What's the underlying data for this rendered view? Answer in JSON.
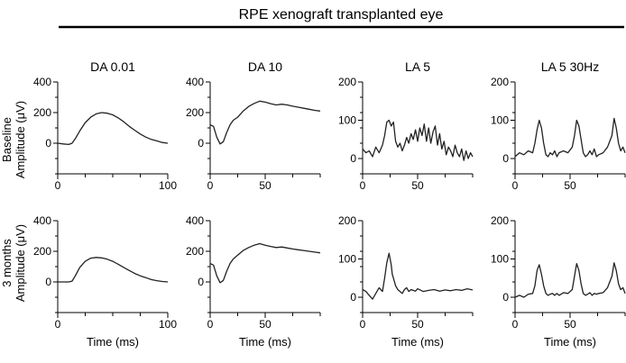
{
  "chart_data": {
    "type": "line",
    "title": "RPE xenograft transplanted eye",
    "row_labels": [
      {
        "line1": "Baseline",
        "line2": "Amplitude (μV)"
      },
      {
        "line1": "3 months",
        "line2": "Amplitude (μV)"
      }
    ],
    "xlabel": "Time (ms)",
    "panels": [
      {
        "title": "DA 0.01",
        "xlim": [
          0,
          100
        ],
        "ylim": [
          -200,
          400
        ],
        "xticks": [
          0,
          100
        ],
        "yticks": [
          400,
          200,
          0
        ],
        "rows": [
          {
            "x": [
              0,
              5,
              10,
              13,
              16,
              20,
              25,
              30,
              35,
              40,
              45,
              50,
              55,
              60,
              65,
              70,
              75,
              80,
              85,
              90,
              95,
              100
            ],
            "y": [
              0,
              -5,
              -8,
              0,
              30,
              80,
              135,
              170,
              192,
              200,
              196,
              185,
              165,
              140,
              110,
              85,
              60,
              40,
              25,
              15,
              5,
              0
            ]
          },
          {
            "x": [
              0,
              5,
              10,
              13,
              16,
              20,
              25,
              30,
              35,
              40,
              45,
              50,
              55,
              60,
              65,
              70,
              75,
              80,
              85,
              90,
              95,
              100
            ],
            "y": [
              0,
              0,
              0,
              5,
              40,
              95,
              135,
              155,
              160,
              157,
              148,
              135,
              115,
              95,
              75,
              55,
              40,
              28,
              15,
              8,
              3,
              0
            ]
          }
        ]
      },
      {
        "title": "DA 10",
        "xlim": [
          0,
          100
        ],
        "ylim": [
          -200,
          400
        ],
        "xticks": [
          0,
          50
        ],
        "yticks": [
          400,
          200,
          0
        ],
        "rows": [
          {
            "x": [
              0,
              3,
              6,
              9,
              12,
              15,
              18,
              21,
              25,
              30,
              35,
              40,
              45,
              50,
              55,
              60,
              65,
              70,
              75,
              80,
              85,
              90,
              95,
              100
            ],
            "y": [
              120,
              110,
              40,
              -5,
              10,
              70,
              120,
              150,
              170,
              210,
              240,
              260,
              275,
              268,
              258,
              250,
              255,
              250,
              242,
              235,
              228,
              222,
              215,
              210
            ]
          },
          {
            "x": [
              0,
              3,
              6,
              9,
              12,
              15,
              18,
              21,
              25,
              30,
              35,
              40,
              45,
              50,
              55,
              60,
              65,
              70,
              75,
              80,
              85,
              90,
              95,
              100
            ],
            "y": [
              120,
              110,
              40,
              -5,
              10,
              70,
              120,
              150,
              175,
              205,
              225,
              240,
              250,
              240,
              232,
              225,
              228,
              222,
              215,
              210,
              205,
              200,
              195,
              190
            ]
          }
        ]
      },
      {
        "title": "LA 5",
        "xlim": [
          0,
          100
        ],
        "ylim": [
          -40,
          200
        ],
        "xticks": [
          0,
          50
        ],
        "yticks": [
          200,
          100,
          0
        ],
        "rows": [
          {
            "x": [
              0,
              3,
              6,
              9,
              12,
              15,
              18,
              20,
              22,
              24,
              26,
              28,
              30,
              32,
              34,
              36,
              38,
              40,
              42,
              44,
              46,
              48,
              50,
              52,
              54,
              56,
              58,
              60,
              62,
              64,
              66,
              68,
              70,
              72,
              74,
              76,
              78,
              80,
              82,
              84,
              86,
              88,
              90,
              92,
              94,
              96,
              98,
              100
            ],
            "y": [
              25,
              15,
              20,
              5,
              30,
              15,
              35,
              60,
              95,
              100,
              85,
              95,
              45,
              30,
              40,
              20,
              35,
              55,
              40,
              65,
              50,
              75,
              45,
              80,
              60,
              90,
              45,
              80,
              40,
              70,
              85,
              35,
              65,
              25,
              45,
              10,
              30,
              20,
              5,
              35,
              15,
              5,
              25,
              -5,
              20,
              0,
              15,
              5
            ]
          },
          {
            "x": [
              0,
              3,
              6,
              9,
              12,
              15,
              18,
              20,
              22,
              24,
              26,
              27,
              28,
              30,
              32,
              34,
              36,
              38,
              40,
              42,
              44,
              46,
              48,
              50,
              55,
              60,
              65,
              70,
              75,
              80,
              85,
              90,
              95,
              100
            ],
            "y": [
              20,
              15,
              5,
              -5,
              10,
              25,
              15,
              50,
              90,
              115,
              85,
              60,
              50,
              30,
              20,
              15,
              10,
              20,
              25,
              15,
              20,
              18,
              16,
              22,
              15,
              18,
              20,
              16,
              19,
              17,
              20,
              18,
              22,
              19
            ]
          }
        ]
      },
      {
        "title": "LA 5 30Hz",
        "xlim": [
          0,
          100
        ],
        "ylim": [
          -40,
          200
        ],
        "xticks": [
          0,
          50
        ],
        "yticks": [
          200,
          100,
          0
        ],
        "rows": [
          {
            "x": [
              0,
              4,
              8,
              12,
              16,
              18,
              20,
              22,
              24,
              26,
              28,
              30,
              32,
              34,
              36,
              38,
              40,
              44,
              48,
              52,
              54,
              56,
              58,
              60,
              62,
              64,
              66,
              68,
              70,
              72,
              74,
              76,
              80,
              84,
              88,
              90,
              92,
              94,
              96,
              98,
              100
            ],
            "y": [
              5,
              15,
              10,
              20,
              15,
              40,
              75,
              100,
              80,
              40,
              10,
              5,
              15,
              10,
              20,
              5,
              15,
              20,
              15,
              30,
              60,
              100,
              85,
              50,
              15,
              5,
              10,
              20,
              10,
              25,
              5,
              10,
              15,
              30,
              60,
              105,
              80,
              40,
              20,
              30,
              15
            ]
          },
          {
            "x": [
              0,
              4,
              8,
              12,
              16,
              18,
              20,
              22,
              24,
              26,
              28,
              30,
              32,
              34,
              36,
              38,
              40,
              44,
              48,
              52,
              54,
              56,
              58,
              60,
              62,
              64,
              66,
              68,
              70,
              72,
              74,
              76,
              80,
              84,
              88,
              90,
              92,
              94,
              96,
              98,
              100
            ],
            "y": [
              0,
              5,
              0,
              8,
              10,
              30,
              70,
              85,
              60,
              30,
              10,
              5,
              8,
              10,
              5,
              10,
              5,
              12,
              10,
              20,
              55,
              88,
              70,
              35,
              10,
              5,
              8,
              12,
              5,
              10,
              8,
              10,
              12,
              25,
              55,
              90,
              70,
              35,
              20,
              25,
              10
            ]
          }
        ]
      }
    ]
  }
}
